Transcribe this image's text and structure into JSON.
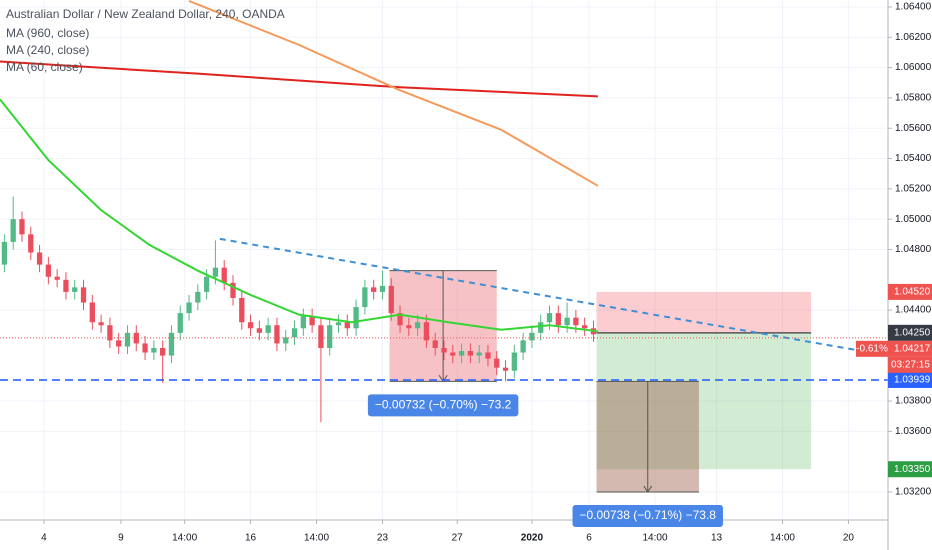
{
  "chart_data": {
    "type": "candlestick",
    "title": "Australian Dollar / New Zealand Dollar, 240, OANDA",
    "up_color": "#53b987",
    "down_color": "#eb4d5c",
    "x": [
      1,
      3,
      5,
      7,
      9,
      11,
      13,
      15,
      17,
      19,
      21,
      23,
      25,
      27,
      29,
      31,
      33,
      35,
      37,
      39,
      41,
      43,
      45,
      47,
      49,
      51,
      53,
      55,
      57,
      59,
      61,
      63,
      65,
      67,
      69,
      71,
      73,
      75,
      77,
      79,
      81,
      83,
      85,
      87,
      89,
      91,
      93,
      95,
      97,
      99,
      101,
      103,
      105,
      107,
      109,
      111,
      113,
      115,
      117,
      119,
      121,
      123,
      125,
      127,
      129,
      131,
      133,
      135
    ],
    "open": [
      1.047,
      1.0485,
      1.05,
      1.049,
      1.0478,
      1.047,
      1.0462,
      1.046,
      1.0452,
      1.0455,
      1.0445,
      1.0432,
      1.043,
      1.042,
      1.0416,
      1.0425,
      1.0418,
      1.0412,
      1.0415,
      1.041,
      1.0425,
      1.0438,
      1.0445,
      1.0452,
      1.0462,
      1.0468,
      1.0458,
      1.0448,
      1.0432,
      1.0428,
      1.0425,
      1.043,
      1.0418,
      1.0422,
      1.0428,
      1.0436,
      1.043,
      1.0415,
      1.043,
      1.0432,
      1.0428,
      1.0442,
      1.0455,
      1.0452,
      1.0456,
      1.0438,
      1.043,
      1.0428,
      1.0432,
      1.042,
      1.0415,
      1.0412,
      1.041,
      1.0413,
      1.041,
      1.0412,
      1.0408,
      1.0402,
      1.04,
      1.0412,
      1.042,
      1.0425,
      1.0432,
      1.0438,
      1.043,
      1.0435,
      1.043,
      1.0428
    ],
    "high": [
      1.049,
      1.0515,
      1.0505,
      1.0495,
      1.0483,
      1.0475,
      1.0467,
      1.0465,
      1.046,
      1.046,
      1.045,
      1.0437,
      1.0435,
      1.0425,
      1.043,
      1.043,
      1.0423,
      1.042,
      1.042,
      1.043,
      1.0443,
      1.045,
      1.0457,
      1.0467,
      1.0486,
      1.0473,
      1.0463,
      1.0453,
      1.0437,
      1.0433,
      1.0435,
      1.0435,
      1.0427,
      1.0433,
      1.0441,
      1.0441,
      1.0435,
      1.0435,
      1.0437,
      1.0437,
      1.0447,
      1.046,
      1.046,
      1.0466,
      1.0461,
      1.0443,
      1.0435,
      1.0437,
      1.0437,
      1.0425,
      1.042,
      1.0417,
      1.0418,
      1.0418,
      1.0417,
      1.0417,
      1.0413,
      1.0407,
      1.0417,
      1.0425,
      1.043,
      1.0437,
      1.0443,
      1.0443,
      1.0445,
      1.044,
      1.0435,
      1.0433
    ],
    "low": [
      1.0465,
      1.048,
      1.0485,
      1.0473,
      1.0465,
      1.0457,
      1.0455,
      1.0447,
      1.0447,
      1.044,
      1.0427,
      1.0425,
      1.0415,
      1.0411,
      1.0411,
      1.0413,
      1.0407,
      1.0407,
      1.0392,
      1.0405,
      1.042,
      1.0433,
      1.044,
      1.0447,
      1.0457,
      1.0453,
      1.0443,
      1.0427,
      1.0423,
      1.042,
      1.042,
      1.0413,
      1.0413,
      1.0417,
      1.0423,
      1.0425,
      1.0366,
      1.041,
      1.0425,
      1.0423,
      1.0423,
      1.0437,
      1.0447,
      1.0447,
      1.0433,
      1.0425,
      1.0423,
      1.0423,
      1.0415,
      1.041,
      1.0407,
      1.0405,
      1.0405,
      1.0405,
      1.0405,
      1.0403,
      1.0397,
      1.0393,
      1.0395,
      1.0407,
      1.0415,
      1.042,
      1.0427,
      1.0425,
      1.0425,
      1.0425,
      1.0423,
      1.0419
    ],
    "close": [
      1.0485,
      1.05,
      1.049,
      1.0478,
      1.047,
      1.0462,
      1.046,
      1.0452,
      1.0455,
      1.0445,
      1.0432,
      1.043,
      1.042,
      1.0416,
      1.0425,
      1.0418,
      1.0412,
      1.0415,
      1.041,
      1.0425,
      1.0438,
      1.0445,
      1.0452,
      1.0462,
      1.0468,
      1.0458,
      1.0448,
      1.0432,
      1.0428,
      1.0425,
      1.043,
      1.0418,
      1.0422,
      1.0428,
      1.0436,
      1.043,
      1.0415,
      1.043,
      1.0432,
      1.0428,
      1.0442,
      1.0455,
      1.0452,
      1.0456,
      1.0438,
      1.043,
      1.0428,
      1.0432,
      1.042,
      1.0415,
      1.0412,
      1.041,
      1.0413,
      1.041,
      1.0412,
      1.0408,
      1.0402,
      1.04,
      1.0412,
      1.042,
      1.0425,
      1.0432,
      1.0438,
      1.043,
      1.0435,
      1.043,
      1.0428,
      1.0424
    ],
    "series": [
      {
        "name": "MA (960, close)",
        "color": "#e0231c",
        "x": [
          0,
          45,
          91,
          136
        ],
        "values": [
          1.0604,
          1.0596,
          1.0587,
          1.0581
        ]
      },
      {
        "name": "MA (240, close)",
        "color": "#f59a5a",
        "x": [
          43,
          68,
          91,
          114,
          136
        ],
        "values": [
          1.0644,
          1.0615,
          1.0585,
          1.0559,
          1.0522
        ]
      },
      {
        "name": "MA (60, close)",
        "color": "#33d633",
        "x": [
          0,
          11,
          23,
          34,
          45,
          57,
          68,
          80,
          91,
          102,
          114,
          125,
          136
        ],
        "values": [
          1.0579,
          1.0539,
          1.0506,
          1.0483,
          1.0466,
          1.045,
          1.0437,
          1.0432,
          1.0437,
          1.0432,
          1.0427,
          1.043,
          1.0426
        ]
      }
    ],
    "xlim": [
      0,
      202
    ],
    "xticks": [
      {
        "value": 10,
        "label": "4"
      },
      {
        "value": 27.5,
        "label": "9"
      },
      {
        "value": 42,
        "label": "14:00"
      },
      {
        "value": 57,
        "label": "16"
      },
      {
        "value": 72,
        "label": "14:00"
      },
      {
        "value": 87,
        "label": "23"
      },
      {
        "value": 104,
        "label": "27"
      },
      {
        "value": 121,
        "label": "2020",
        "bold": true
      },
      {
        "value": 134,
        "label": "6"
      },
      {
        "value": 149,
        "label": "14:00"
      },
      {
        "value": 163,
        "label": "13"
      },
      {
        "value": 178,
        "label": "14:00"
      },
      {
        "value": 193,
        "label": "20"
      }
    ],
    "ylim": [
      1.03015,
      1.06446
    ],
    "yticks": [
      {
        "value": 1.064,
        "label": "1.06400"
      },
      {
        "value": 1.062,
        "label": "1.06200"
      },
      {
        "value": 1.06,
        "label": "1.06000"
      },
      {
        "value": 1.058,
        "label": "1.05800"
      },
      {
        "value": 1.056,
        "label": "1.05600"
      },
      {
        "value": 1.054,
        "label": "1.05400"
      },
      {
        "value": 1.052,
        "label": "1.05200"
      },
      {
        "value": 1.05,
        "label": "1.05000"
      },
      {
        "value": 1.048,
        "label": "1.04800"
      },
      {
        "value": 1.044,
        "label": "1.04400"
      },
      {
        "value": 1.038,
        "label": "1.03800"
      },
      {
        "value": 1.036,
        "label": "1.03600"
      },
      {
        "value": 1.032,
        "label": "1.03200"
      }
    ],
    "trend_line": {
      "color": "#3d8fd6",
      "x": [
        50,
        202
      ],
      "values": [
        1.0487,
        1.041
      ]
    },
    "hline": {
      "value": 1.03939,
      "label": "1.03939",
      "color": "#2962ff"
    },
    "last_price": {
      "value": 1.04217,
      "label": "1.04217",
      "change": "-0.61%",
      "countdown": "03:27:15",
      "color": "#ef5350"
    },
    "position": {
      "x": [
        135.7,
        184.5
      ],
      "stop": {
        "value": 1.0452,
        "label": "1.04520",
        "color": "#ef5350"
      },
      "entry": {
        "value": 1.0425,
        "label": "1.04250",
        "color": "#363a45"
      },
      "target": {
        "value": 1.0335,
        "label": "1.03350",
        "color": "#2e9e44"
      }
    },
    "measures": [
      {
        "x": [
          88.6,
          113
        ],
        "values": [
          1.0466,
          1.0393
        ],
        "label": "−0.00732 (−0.70%) −73.2"
      },
      {
        "x": [
          135.7,
          159
        ],
        "values": [
          1.0393,
          1.032
        ],
        "label": "−0.00738 (−0.71%) −73.8"
      }
    ]
  }
}
